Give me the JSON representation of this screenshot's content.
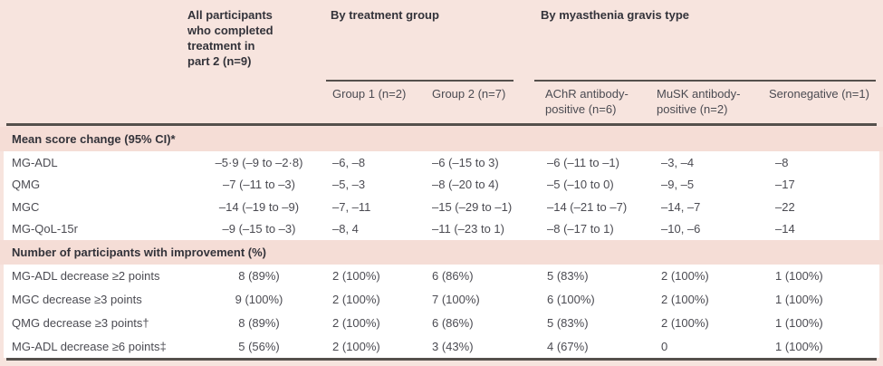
{
  "header": {
    "all_participants": "All participants who completed treatment in part 2 (n=9)",
    "by_treatment_group": "By treatment group",
    "by_mg_type": "By myasthenia gravis type",
    "sub_group1": "Group 1 (n=2)",
    "sub_group2": "Group 2 (n=7)",
    "sub_achr": "AChR antibody-positive (n=6)",
    "sub_musk": "MuSK antibody-positive (n=2)",
    "sub_sero": "Seronegative (n=1)"
  },
  "section1": {
    "title": "Mean score change (95% CI)*",
    "rows": [
      {
        "label": "MG-ADL",
        "cells": [
          "–5·9 (–9 to –2·8)",
          "–6, –8",
          "–6 (–15 to 3)",
          "–6 (–11 to –1)",
          "–3, –4",
          "–8"
        ]
      },
      {
        "label": "QMG",
        "cells": [
          "–7 (–11 to –3)",
          "–5, –3",
          "–8 (–20 to 4)",
          "–5 (–10 to 0)",
          "–9, –5",
          "–17"
        ]
      },
      {
        "label": "MGC",
        "cells": [
          "–14 (–19 to –9)",
          "–7, –11",
          "–15 (–29 to –1)",
          "–14 (–21 to –7)",
          "–14, –7",
          "–22"
        ]
      },
      {
        "label": "MG-QoL-15r",
        "cells": [
          "–9 (–15 to –3)",
          "–8, 4",
          "–11 (–23 to 1)",
          "–8 (–17 to 1)",
          "–10, –6",
          "–14"
        ]
      }
    ]
  },
  "section2": {
    "title": "Number of participants with improvement (%)",
    "rows": [
      {
        "label": "MG-ADL decrease ≥2 points",
        "cells": [
          "8 (89%)",
          "2 (100%)",
          "6 (86%)",
          "5 (83%)",
          "2 (100%)",
          "1 (100%)"
        ]
      },
      {
        "label": "MGC decrease ≥3 points",
        "cells": [
          "9 (100%)",
          "2 (100%)",
          "7 (100%)",
          "6 (100%)",
          "2 (100%)",
          "1 (100%)"
        ]
      },
      {
        "label": "QMG decrease ≥3 points†",
        "cells": [
          "8 (89%)",
          "2 (100%)",
          "6 (86%)",
          "5 (83%)",
          "2 (100%)",
          "1 (100%)"
        ]
      },
      {
        "label": "MG-ADL decrease ≥6 points‡",
        "cells": [
          "5 (56%)",
          "2 (100%)",
          "3 (43%)",
          "4 (67%)",
          "0",
          "1 (100%)"
        ]
      }
    ]
  },
  "colors": {
    "page_pink": "#f7e4de",
    "section_pink": "#f5ddd6",
    "row_white": "#ffffff",
    "rule_dark": "#55504c",
    "text": "#4b4b52",
    "text_bold": "#33333a"
  }
}
